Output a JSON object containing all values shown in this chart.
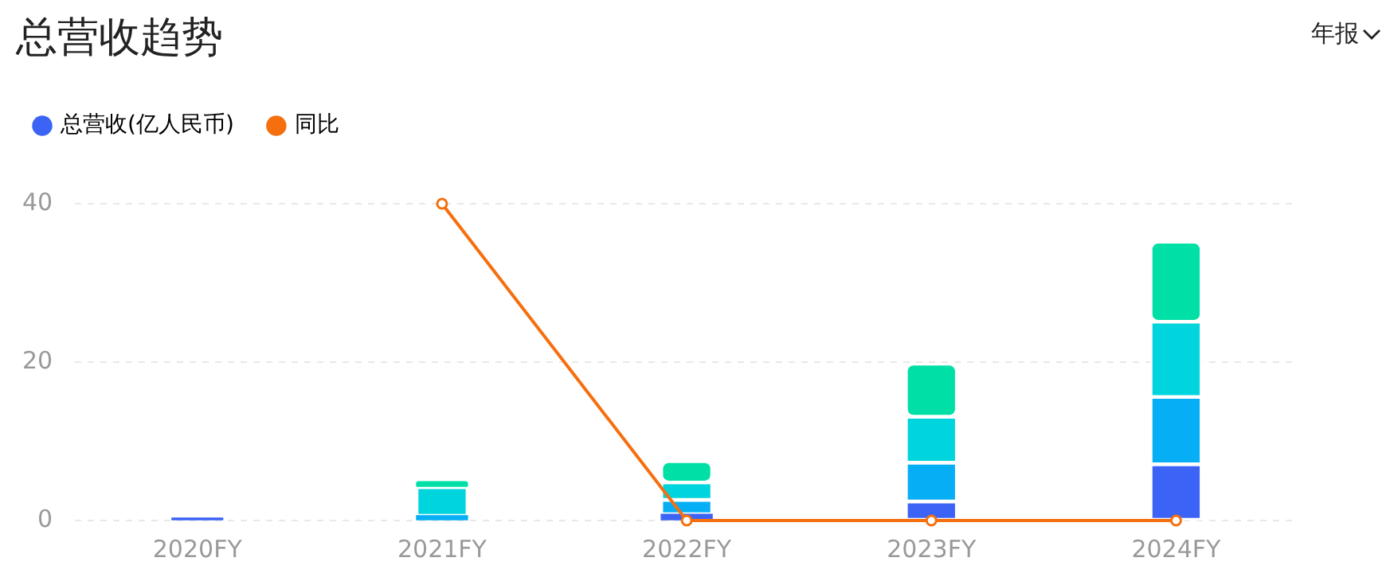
{
  "chart_data": {
    "type": "bar",
    "title": "总营收趋势",
    "annotations": [
      "年报"
    ],
    "categories": [
      "2020FY",
      "2021FY",
      "2022FY",
      "2023FY",
      "2024FY"
    ],
    "stacked": true,
    "series": [
      {
        "name": "总营收(亿人民币)",
        "color": "#3b63f5",
        "values": [
          0.3,
          null,
          0.8,
          2.4,
          7.1
        ]
      },
      {
        "color": "#06aff5",
        "values": [
          null,
          0.6,
          1.8,
          4.9,
          8.5
        ]
      },
      {
        "color": "#00d4dc",
        "values": [
          null,
          3.6,
          2.2,
          5.8,
          9.5
        ]
      },
      {
        "color": "#00e0a6",
        "values": [
          null,
          0.7,
          2.7,
          6.7,
          10.1
        ]
      },
      {
        "type": "line",
        "name": "同比",
        "color": "#f56f0f",
        "values": [
          null,
          40,
          0,
          0,
          0
        ]
      }
    ],
    "ylim": [
      0,
      40
    ],
    "yticks": [
      0,
      20,
      40
    ],
    "grid": "y",
    "legend": "top left",
    "marker": "circle",
    "line_style": "solid"
  }
}
